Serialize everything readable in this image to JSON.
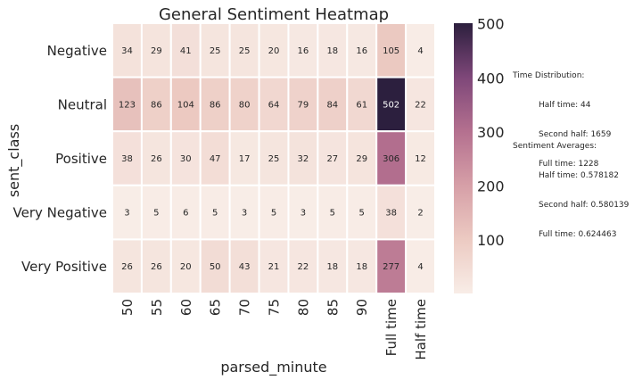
{
  "chart_data": {
    "type": "heatmap",
    "title": "General Sentiment Heatmap",
    "xlabel": "parsed_minute",
    "ylabel": "sent_class",
    "x_categories": [
      "50",
      "55",
      "60",
      "65",
      "70",
      "75",
      "80",
      "85",
      "90",
      "Full time",
      "Half time"
    ],
    "y_categories": [
      "Negative",
      "Neutral",
      "Positive",
      "Very Negative",
      "Very Positive"
    ],
    "values": [
      [
        34,
        29,
        41,
        25,
        25,
        20,
        16,
        18,
        16,
        105,
        4
      ],
      [
        123,
        86,
        104,
        86,
        80,
        64,
        79,
        84,
        61,
        502,
        22
      ],
      [
        38,
        26,
        30,
        47,
        17,
        25,
        32,
        27,
        29,
        306,
        12
      ],
      [
        3,
        5,
        6,
        5,
        3,
        5,
        3,
        5,
        5,
        38,
        2
      ],
      [
        26,
        26,
        20,
        50,
        43,
        21,
        22,
        18,
        18,
        277,
        4
      ]
    ],
    "colorbar": {
      "min": 2,
      "max": 502,
      "ticks": [
        100,
        200,
        300,
        400,
        500
      ],
      "colors": [
        "#f8ede7",
        "#eccac2",
        "#d69fa7",
        "#b4708f",
        "#7e4779",
        "#2c1f3e"
      ]
    },
    "grid": false
  },
  "notes": {
    "time_title": "Time Distribution:",
    "time_lines": [
      "Half time: 44",
      "Second half: 1659",
      "Full time: 1228"
    ],
    "sent_title": "Sentiment Averages:",
    "sent_lines": [
      "Half time: 0.578182",
      "Second half: 0.580139",
      "Full time: 0.624463"
    ]
  }
}
